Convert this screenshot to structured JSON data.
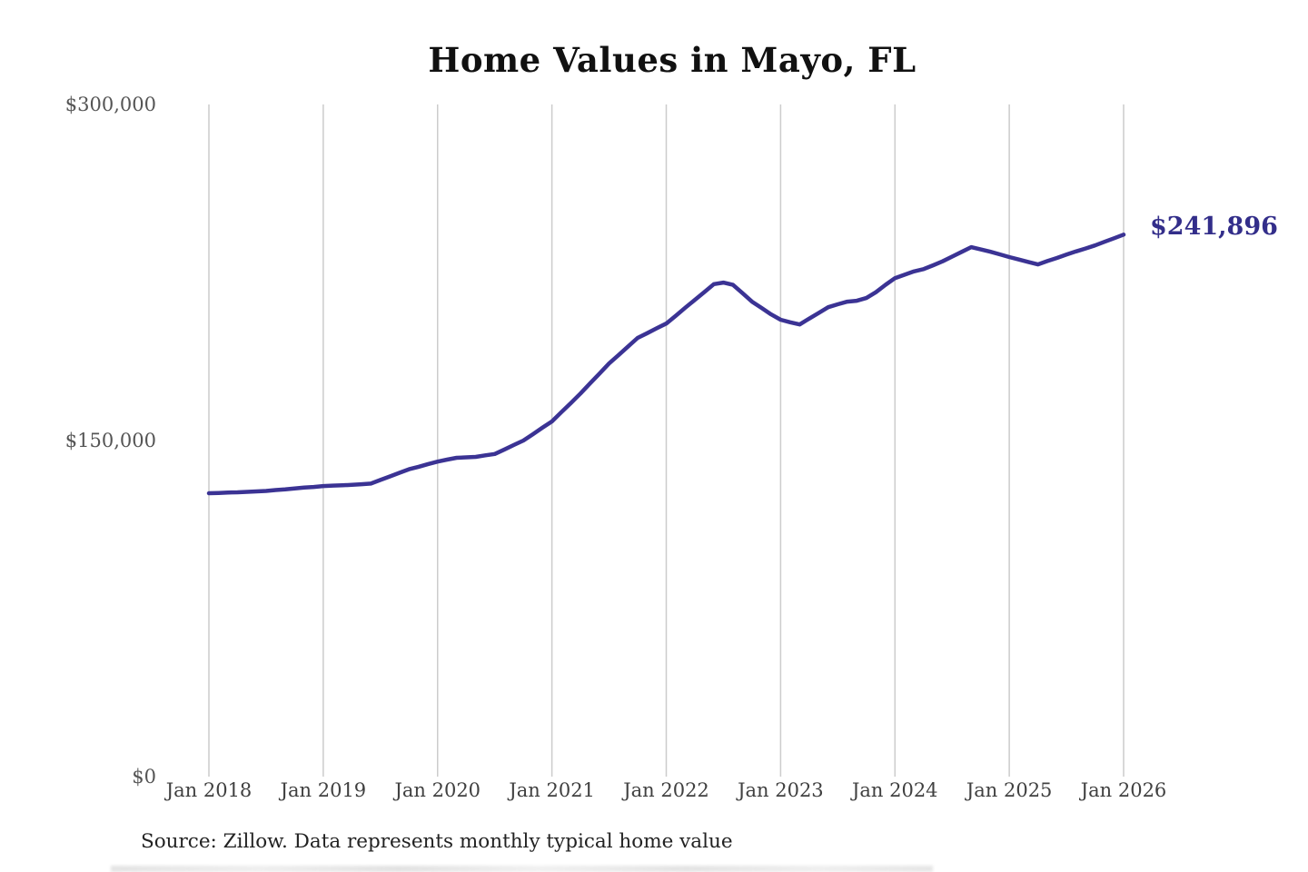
{
  "source_note": "Source: Zillow. Data represents monthly typical home value",
  "chart_data": {
    "type": "line",
    "title": "Home Values in Mayo, FL",
    "x_start": "Jan 2018",
    "x_end": "Jan 2026",
    "interval": "monthly",
    "x_tick_labels": [
      "Jan 2018",
      "Jan 2019",
      "Jan 2020",
      "Jan 2021",
      "Jan 2022",
      "Jan 2023",
      "Jan 2024",
      "Jan 2025",
      "Jan 2026"
    ],
    "y_ticks": [
      0,
      150000,
      300000
    ],
    "y_tick_labels": [
      "$0",
      "$150,000",
      "$300,000"
    ],
    "ylim": [
      0,
      300000
    ],
    "grid": "vertical-only",
    "legend": "none",
    "end_label": "$241,896",
    "end_value": 241896,
    "line_color": "#3b3394",
    "label_color": "#332e8a",
    "gridline_color": "#cccccc",
    "series": [
      {
        "name": "Typical home value",
        "values": [
          126500,
          126600,
          126800,
          126900,
          127100,
          127300,
          127500,
          127900,
          128200,
          128600,
          129000,
          129300,
          129700,
          129900,
          130000,
          130200,
          130500,
          130800,
          132400,
          134000,
          135600,
          137200,
          138300,
          139500,
          140600,
          141500,
          142300,
          142500,
          142700,
          143400,
          144000,
          146000,
          148000,
          150000,
          152800,
          155700,
          158500,
          162700,
          166800,
          171000,
          175500,
          179900,
          184400,
          188200,
          192000,
          195800,
          197900,
          200100,
          202200,
          205700,
          209300,
          212800,
          216300,
          219800,
          220500,
          219500,
          215800,
          212000,
          209200,
          206300,
          203900,
          202800,
          201800,
          204400,
          206900,
          209500,
          210800,
          212000,
          212400,
          213600,
          216200,
          219500,
          222500,
          224000,
          225500,
          226500,
          228200,
          230000,
          232100,
          234200,
          236300,
          235300,
          234300,
          233100,
          231900,
          230800,
          229700,
          228600,
          230100,
          231500,
          233000,
          234400,
          235700,
          237100,
          238700,
          240300,
          241896
        ]
      }
    ]
  }
}
